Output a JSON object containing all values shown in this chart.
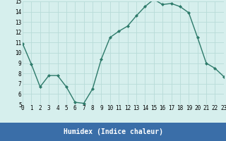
{
  "x": [
    0,
    1,
    2,
    3,
    4,
    5,
    6,
    7,
    8,
    9,
    10,
    11,
    12,
    13,
    14,
    15,
    16,
    17,
    18,
    19,
    20,
    21,
    22,
    23
  ],
  "y": [
    10.9,
    8.9,
    6.7,
    7.8,
    7.8,
    6.7,
    5.2,
    5.1,
    6.5,
    9.4,
    11.5,
    12.1,
    12.6,
    13.6,
    14.5,
    15.2,
    14.7,
    14.8,
    14.5,
    13.9,
    11.5,
    9.0,
    8.5,
    7.7
  ],
  "xlabel": "Humidex (Indice chaleur)",
  "ylim": [
    5,
    15
  ],
  "xlim": [
    0,
    23
  ],
  "yticks": [
    5,
    6,
    7,
    8,
    9,
    10,
    11,
    12,
    13,
    14,
    15
  ],
  "xticks": [
    0,
    1,
    2,
    3,
    4,
    5,
    6,
    7,
    8,
    9,
    10,
    11,
    12,
    13,
    14,
    15,
    16,
    17,
    18,
    19,
    20,
    21,
    22,
    23
  ],
  "line_color": "#2d7a6a",
  "marker_color": "#2d7a6a",
  "bg_color": "#d6efed",
  "grid_color": "#b8dbd8",
  "xlabel_color": "#ffffff",
  "xlabel_bg": "#3a6ea8",
  "tick_fontsize": 5.5,
  "xlabel_fontsize": 7.0
}
